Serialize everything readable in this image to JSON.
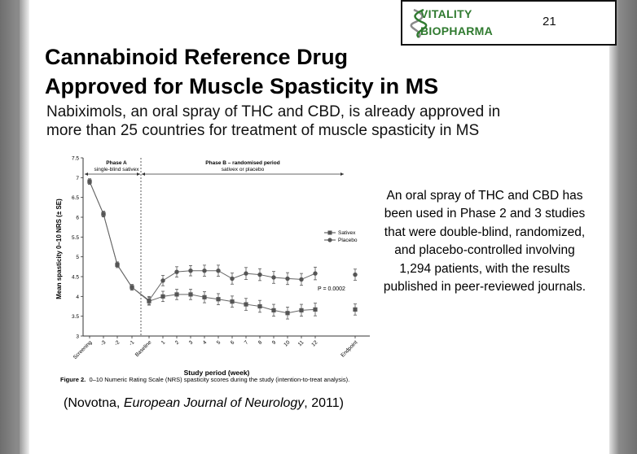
{
  "logo": {
    "line1": "VITALITY",
    "line2": "BIOPHARMA"
  },
  "page_number": "21",
  "title": {
    "line1": "Cannabinoid Reference Drug",
    "line2": "Approved for Muscle Spasticity in MS"
  },
  "subtitle": {
    "line1": "Nabiximols, an oral spray of THC and CBD, is already approved in",
    "line2": "more than 25 countries for treatment of muscle spasticity in MS"
  },
  "side_text": "An oral spray of THC and CBD has been used in Phase 2 and 3 studies that were double-blind, randomized, and placebo-controlled involving 1,294 patients, with the results published in peer-reviewed journals.",
  "citation": {
    "open": "(Novotna, ",
    "journal": "European Journal of Neurology",
    "close": ", 2011)"
  },
  "figure_caption": {
    "label": "Figure 2.",
    "text": "0–10 Numeric Rating Scale (NRS) spasticity scores during the study (intention-to-treat analysis)."
  },
  "chart_data": {
    "type": "line",
    "ylabel": "Mean spasticity 0–10 NRS (± SE)",
    "xlabel": "Study period (week)",
    "ylim": [
      3,
      7.5
    ],
    "yticks": [
      "3",
      "3.5",
      "4",
      "4.5",
      "5",
      "5.5",
      "6",
      "6.5",
      "7",
      "7.5"
    ],
    "categories": [
      "Screening",
      "-3",
      "-2",
      "-1",
      "Baseline",
      "1",
      "2",
      "3",
      "4",
      "5",
      "6",
      "7",
      "8",
      "9",
      "10",
      "11",
      "12",
      "Endpoint"
    ],
    "phase_a": {
      "line1": "Phase A",
      "line2": "single-blind sativex"
    },
    "phase_b": {
      "line1": "Phase B – randomised period",
      "line2": "sativex or placebo"
    },
    "p_value": "P = 0.0002",
    "series": [
      {
        "name": "Sativex",
        "marker": "square",
        "values": [
          6.9,
          6.08,
          4.8,
          4.23,
          3.88,
          4.0,
          4.05,
          4.05,
          3.98,
          3.93,
          3.87,
          3.8,
          3.75,
          3.65,
          3.58,
          3.65,
          3.67,
          3.67
        ]
      },
      {
        "name": "Placebo",
        "marker": "circle",
        "values": [
          6.9,
          6.08,
          4.8,
          4.23,
          3.9,
          4.4,
          4.62,
          4.65,
          4.65,
          4.65,
          4.45,
          4.58,
          4.55,
          4.48,
          4.45,
          4.43,
          4.58,
          4.55
        ]
      }
    ]
  }
}
